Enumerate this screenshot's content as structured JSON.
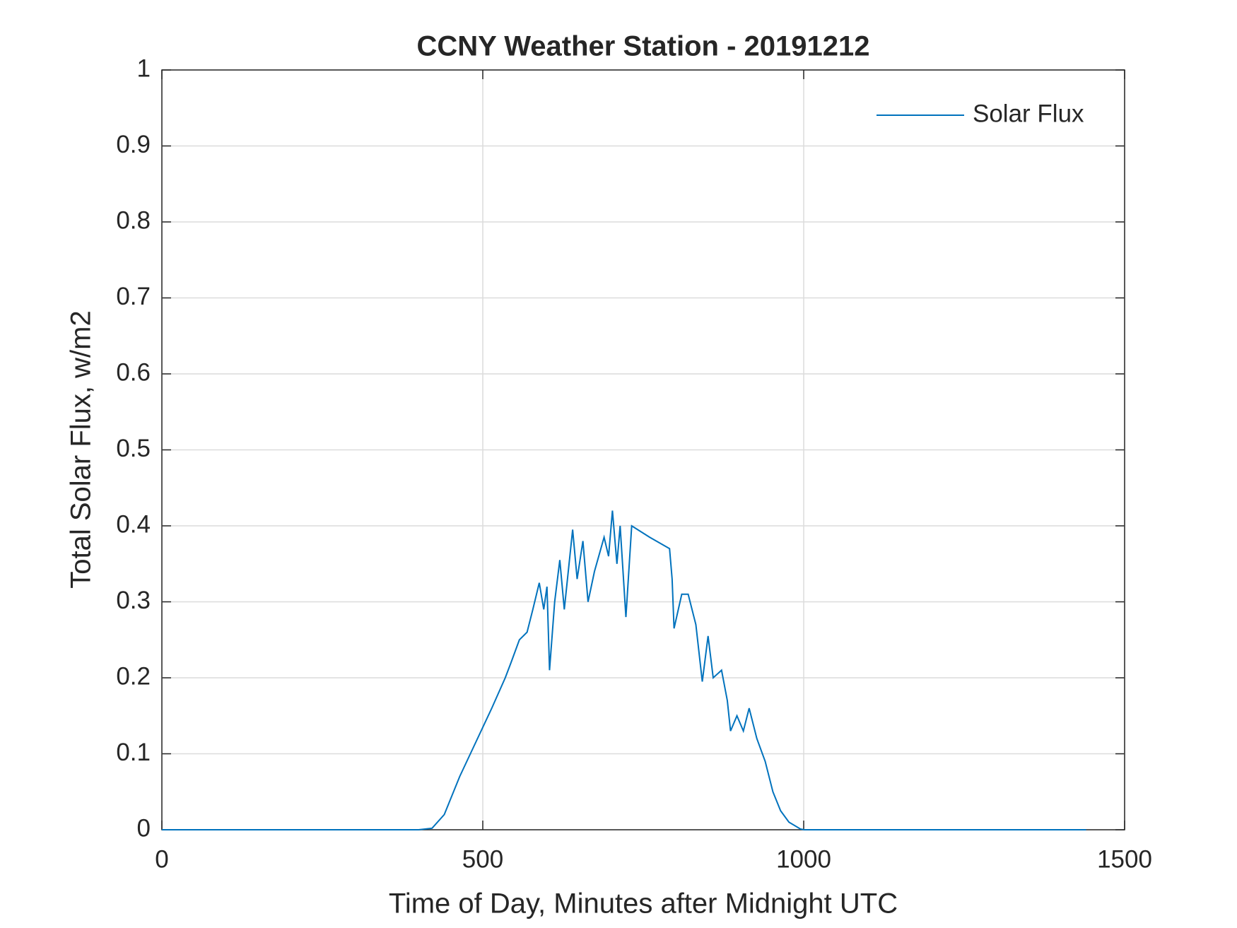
{
  "chart_data": {
    "type": "line",
    "title": "CCNY Weather Station - 20191212",
    "xlabel": "Time of Day, Minutes after Midnight UTC",
    "ylabel": "Total Solar Flux, w/m2",
    "x": [
      0,
      400,
      421,
      440,
      464,
      489,
      514,
      535,
      544,
      557,
      569,
      578,
      588,
      595,
      600,
      604,
      612,
      620,
      627,
      640,
      647,
      656,
      664,
      674,
      689,
      696,
      702,
      709,
      714,
      723,
      732,
      760,
      791,
      795,
      798,
      810,
      820,
      832,
      842,
      851,
      859,
      872,
      881,
      886,
      896,
      906,
      915,
      927,
      940,
      952,
      964,
      977,
      995,
      1001,
      1440
    ],
    "series": [
      {
        "name": "Solar Flux",
        "color": "#0072bd",
        "values": [
          0,
          0,
          0.002,
          0.02,
          0.07,
          0.115,
          0.16,
          0.2,
          0.22,
          0.25,
          0.26,
          0.29,
          0.325,
          0.29,
          0.32,
          0.21,
          0.3,
          0.355,
          0.29,
          0.395,
          0.33,
          0.38,
          0.3,
          0.34,
          0.385,
          0.36,
          0.42,
          0.35,
          0.4,
          0.28,
          0.4,
          0.385,
          0.37,
          0.33,
          0.265,
          0.31,
          0.31,
          0.27,
          0.195,
          0.255,
          0.2,
          0.21,
          0.17,
          0.13,
          0.15,
          0.13,
          0.16,
          0.12,
          0.09,
          0.05,
          0.025,
          0.01,
          0.001,
          0,
          0
        ]
      }
    ],
    "xlim": [
      0,
      1500
    ],
    "xticks": [
      0,
      500,
      1000,
      1500
    ],
    "ylim": [
      0,
      1
    ],
    "yticks": [
      0,
      0.1,
      0.2,
      0.3,
      0.4,
      0.5,
      0.6,
      0.7,
      0.8,
      0.9,
      1
    ],
    "grid": true,
    "legend": "top-right"
  }
}
